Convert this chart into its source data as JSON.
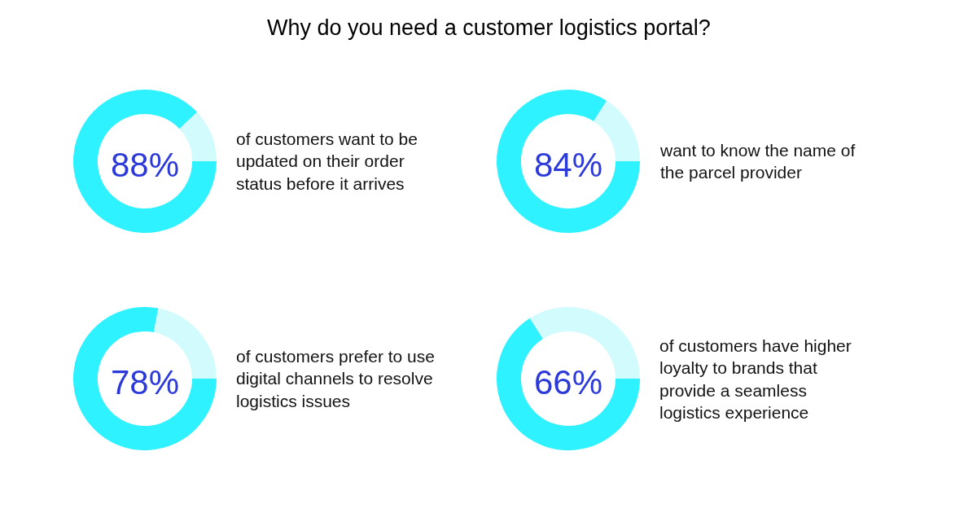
{
  "chart_data": [
    {
      "type": "donut",
      "title": "Why do you need a customer logistics portal?",
      "categories": [
        null,
        null
      ],
      "values": [
        88,
        12
      ],
      "colors": [
        "#2ef2ff",
        "#d2fbfd"
      ],
      "value_labels": [
        "88%",
        null
      ],
      "annotations": [
        "of customers want to be\nupdated on their order\nstatus before it arrives"
      ]
    },
    {
      "type": "donut",
      "categories": [
        null,
        null
      ],
      "values": [
        84,
        16
      ],
      "colors": [
        "#2ef2ff",
        "#d2fbfd"
      ],
      "value_labels": [
        "84%",
        null
      ],
      "annotations": [
        "want to know the name of\nthe parcel provider"
      ]
    },
    {
      "type": "donut",
      "categories": [
        null,
        null
      ],
      "values": [
        78,
        22
      ],
      "colors": [
        "#2ef2ff",
        "#d2fbfd"
      ],
      "value_labels": [
        "78%",
        null
      ],
      "annotations": [
        "of customers prefer to use\ndigital channels to resolve\nlogistics issues"
      ]
    },
    {
      "type": "donut",
      "categories": [
        null,
        null
      ],
      "values": [
        66,
        34
      ],
      "colors": [
        "#2ef2ff",
        "#d2fbfd"
      ],
      "value_labels": [
        "66%",
        null
      ],
      "annotations": [
        "of customers have higher\nloyalty to brands that\nprovide a seamless\nlogistics experience"
      ]
    }
  ]
}
